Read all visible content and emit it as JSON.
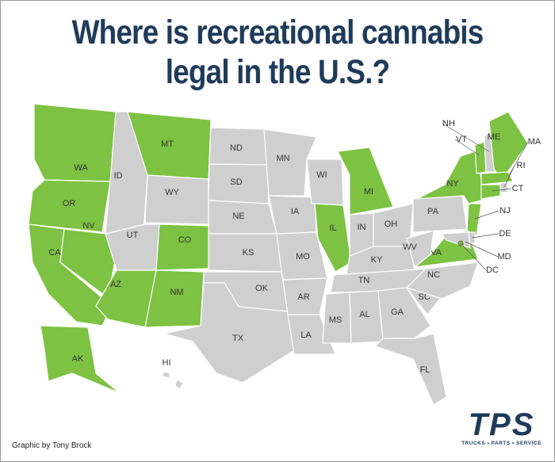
{
  "title_lines": [
    "Where is recreational cannabis",
    "legal in the U.S.?"
  ],
  "colors": {
    "legal": "#7dc242",
    "not_legal": "#cfcfcf"
  },
  "states": [
    {
      "label": "WA",
      "legal": true
    },
    {
      "label": "OR",
      "legal": true
    },
    {
      "label": "CA",
      "legal": true
    },
    {
      "label": "NV",
      "legal": true
    },
    {
      "label": "ID",
      "legal": false
    },
    {
      "label": "MT",
      "legal": true
    },
    {
      "label": "WY",
      "legal": false
    },
    {
      "label": "UT",
      "legal": false
    },
    {
      "label": "CO",
      "legal": true
    },
    {
      "label": "AZ",
      "legal": true
    },
    {
      "label": "NM",
      "legal": true
    },
    {
      "label": "ND",
      "legal": false
    },
    {
      "label": "SD",
      "legal": false
    },
    {
      "label": "NE",
      "legal": false
    },
    {
      "label": "KS",
      "legal": false
    },
    {
      "label": "OK",
      "legal": false
    },
    {
      "label": "TX",
      "legal": false
    },
    {
      "label": "MN",
      "legal": false
    },
    {
      "label": "IA",
      "legal": false
    },
    {
      "label": "MO",
      "legal": false
    },
    {
      "label": "AR",
      "legal": false
    },
    {
      "label": "LA",
      "legal": false
    },
    {
      "label": "WI",
      "legal": false
    },
    {
      "label": "IL",
      "legal": true
    },
    {
      "label": "MI",
      "legal": true
    },
    {
      "label": "IN",
      "legal": false
    },
    {
      "label": "OH",
      "legal": false
    },
    {
      "label": "KY",
      "legal": false
    },
    {
      "label": "TN",
      "legal": false
    },
    {
      "label": "MS",
      "legal": false
    },
    {
      "label": "AL",
      "legal": false
    },
    {
      "label": "GA",
      "legal": false
    },
    {
      "label": "FL",
      "legal": false
    },
    {
      "label": "SC",
      "legal": false
    },
    {
      "label": "NC",
      "legal": false
    },
    {
      "label": "VA",
      "legal": true
    },
    {
      "label": "WV",
      "legal": false
    },
    {
      "label": "PA",
      "legal": false
    },
    {
      "label": "NY",
      "legal": true
    },
    {
      "label": "VT",
      "legal": true
    },
    {
      "label": "NH",
      "legal": false
    },
    {
      "label": "ME",
      "legal": true
    },
    {
      "label": "MA",
      "legal": true
    },
    {
      "label": "RI",
      "legal": false
    },
    {
      "label": "CT",
      "legal": true
    },
    {
      "label": "NJ",
      "legal": true
    },
    {
      "label": "DE",
      "legal": false
    },
    {
      "label": "MD",
      "legal": false
    },
    {
      "label": "DC",
      "legal": true
    },
    {
      "label": "AK",
      "legal": true
    },
    {
      "label": "HI",
      "legal": false
    }
  ],
  "credit": "Graphic by Tony Brock",
  "logo": {
    "name": "TPS",
    "tagline": "TRUCKS • PARTS • SERVICE"
  }
}
